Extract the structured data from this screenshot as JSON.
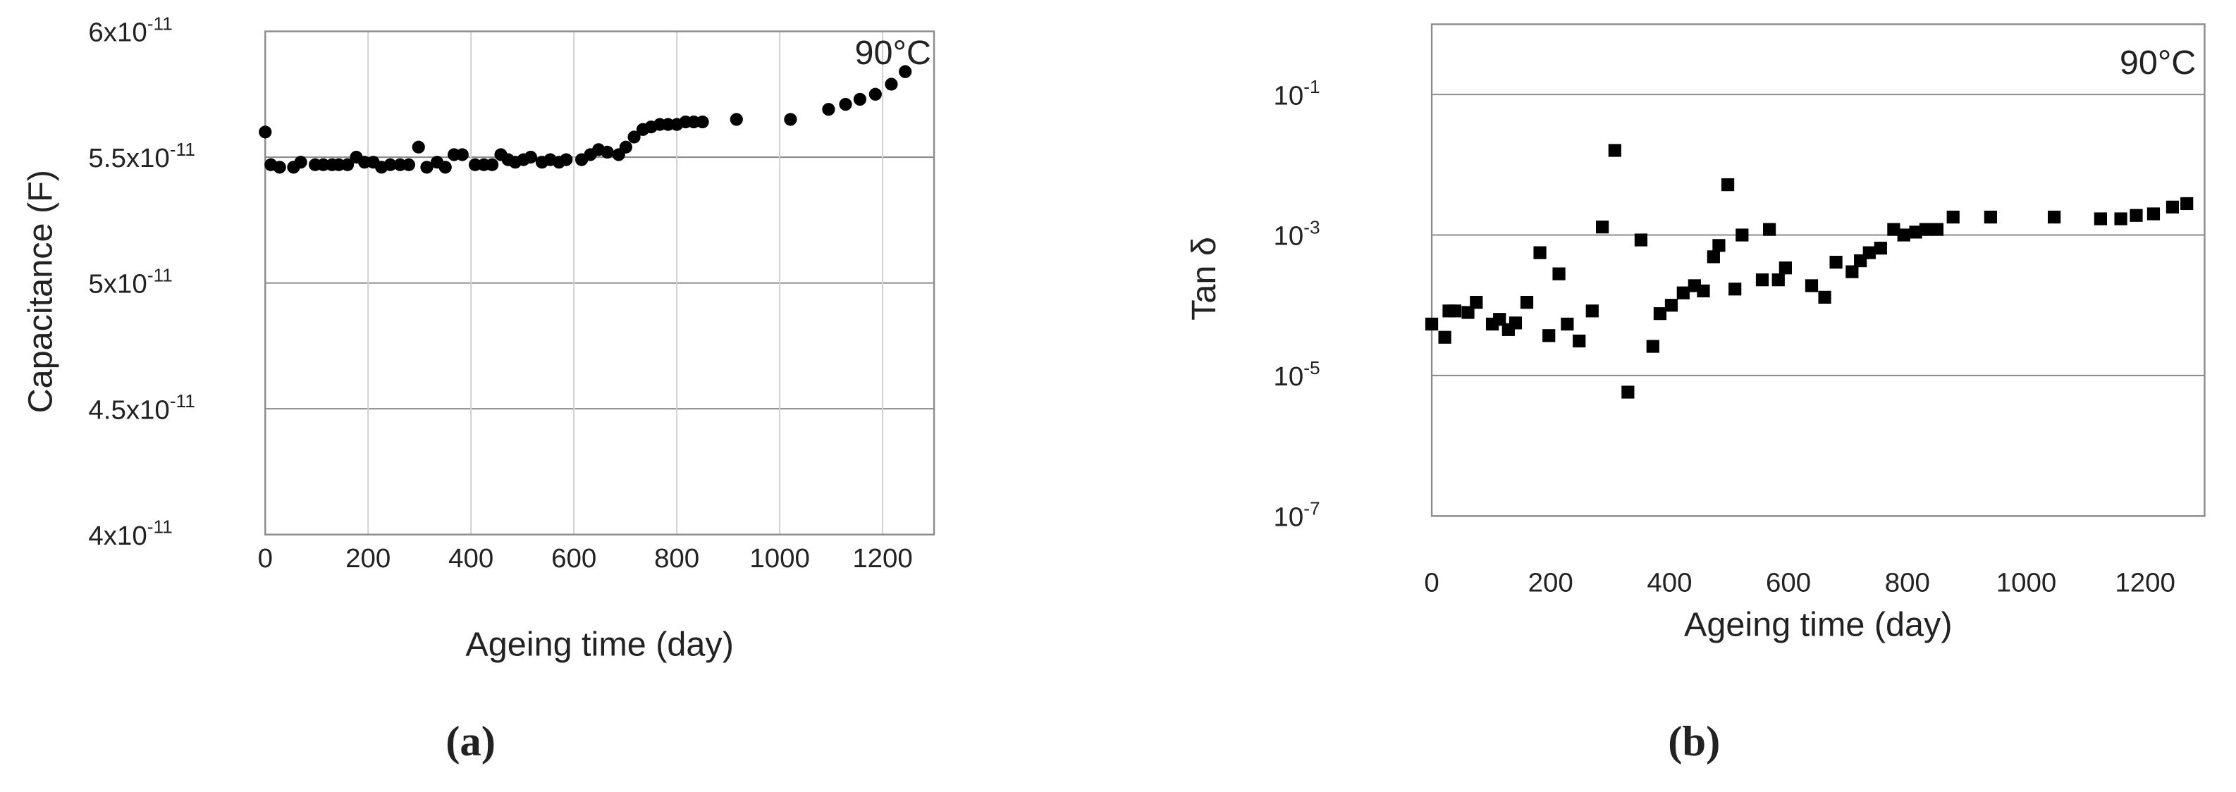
{
  "chart_data": [
    {
      "type": "scatter",
      "panel_label": "(a)",
      "annotation": "90°C",
      "x_label": "Ageing time (day)",
      "y_label": "Capacitance (F)",
      "marker": "circle",
      "color": "#000000",
      "grid": "both",
      "xlim": [
        0,
        1300
      ],
      "xticks": [
        0,
        200,
        400,
        600,
        800,
        1000,
        1200
      ],
      "ylim": [
        4e-11,
        6e-11
      ],
      "yticks": [
        {
          "value": 4e-11,
          "label": "4x10",
          "exponent": "-11"
        },
        {
          "value": 4.5e-11,
          "label": "4.5x10",
          "exponent": "-11"
        },
        {
          "value": 5e-11,
          "label": "5x10",
          "exponent": "-11"
        },
        {
          "value": 5.5e-11,
          "label": "5.5x10",
          "exponent": "-11"
        },
        {
          "value": 6e-11,
          "label": "6x10",
          "exponent": "-11"
        }
      ],
      "x": [
        0,
        11,
        28,
        55,
        69,
        97,
        113,
        130,
        143,
        160,
        177,
        193,
        210,
        226,
        243,
        262,
        279,
        298,
        314,
        334,
        350,
        367,
        383,
        408,
        425,
        441,
        458,
        472,
        486,
        502,
        516,
        538,
        554,
        571,
        585,
        615,
        632,
        648,
        665,
        687,
        701,
        717,
        734,
        750,
        767,
        783,
        800,
        817,
        833,
        850,
        916,
        1021,
        1095,
        1128,
        1156,
        1186,
        1217,
        1244
      ],
      "values": [
        5.6e-11,
        5.47e-11,
        5.46e-11,
        5.46e-11,
        5.48e-11,
        5.47e-11,
        5.47e-11,
        5.47e-11,
        5.47e-11,
        5.47e-11,
        5.5e-11,
        5.48e-11,
        5.48e-11,
        5.46e-11,
        5.47e-11,
        5.47e-11,
        5.47e-11,
        5.54e-11,
        5.46e-11,
        5.48e-11,
        5.46e-11,
        5.51e-11,
        5.51e-11,
        5.47e-11,
        5.47e-11,
        5.47e-11,
        5.51e-11,
        5.49e-11,
        5.48e-11,
        5.49e-11,
        5.5e-11,
        5.48e-11,
        5.49e-11,
        5.48e-11,
        5.49e-11,
        5.49e-11,
        5.51e-11,
        5.53e-11,
        5.52e-11,
        5.51e-11,
        5.54e-11,
        5.58e-11,
        5.61e-11,
        5.62e-11,
        5.63e-11,
        5.63e-11,
        5.63e-11,
        5.64e-11,
        5.64e-11,
        5.64e-11,
        5.65e-11,
        5.65e-11,
        5.69e-11,
        5.71e-11,
        5.73e-11,
        5.75e-11,
        5.79e-11,
        5.84e-11
      ]
    },
    {
      "type": "scatter",
      "panel_label": "(b)",
      "annotation": "90°C",
      "x_label": "Ageing time (day)",
      "y_label": "Tan δ",
      "marker": "square",
      "color": "#000000",
      "grid": "y",
      "log_y": true,
      "xlim": [
        0,
        1300
      ],
      "xticks": [
        0,
        200,
        400,
        600,
        800,
        1000,
        1200
      ],
      "ylim": [
        1e-07,
        1
      ],
      "yticks": [
        {
          "value": 1e-07,
          "label": "10",
          "exponent": "-7"
        },
        {
          "value": 1e-05,
          "label": "10",
          "exponent": "-5"
        },
        {
          "value": 0.001,
          "label": "10",
          "exponent": "-3"
        },
        {
          "value": 0.1,
          "label": "10",
          "exponent": "-1"
        }
      ],
      "x": [
        0,
        22,
        29,
        39,
        61,
        75,
        102,
        114,
        129,
        141,
        160,
        182,
        197,
        214,
        228,
        248,
        270,
        287,
        308,
        330,
        352,
        372,
        384,
        403,
        423,
        442,
        457,
        474,
        483,
        498,
        510,
        522,
        556,
        568,
        583,
        595,
        639,
        661,
        680,
        707,
        721,
        736,
        755,
        777,
        794,
        814,
        831,
        850,
        877,
        940,
        1047,
        1125,
        1159,
        1185,
        1214,
        1246,
        1270
      ],
      "values": [
        5.4e-05,
        3.5e-05,
        8.3e-05,
        8.3e-05,
        7.9e-05,
        0.00011,
        5.4e-05,
        6.3e-05,
        4.5e-05,
        5.6e-05,
        0.00011,
        0.00056,
        3.7e-05,
        0.00028,
        5.4e-05,
        3.1e-05,
        8.3e-05,
        0.0013,
        0.016,
        5.8e-06,
        0.00085,
        2.6e-05,
        7.6e-05,
        0.0001,
        0.00015,
        0.00019,
        0.00016,
        0.00049,
        0.00071,
        0.0052,
        0.00017,
        0.001,
        0.00023,
        0.0012,
        0.00023,
        0.00034,
        0.00019,
        0.00013,
        0.00041,
        0.0003,
        0.00043,
        0.00056,
        0.00065,
        0.0012,
        0.001,
        0.0011,
        0.0012,
        0.0012,
        0.0018,
        0.0018,
        0.0018,
        0.0017,
        0.0017,
        0.0019,
        0.002,
        0.0025,
        0.0028
      ]
    }
  ]
}
